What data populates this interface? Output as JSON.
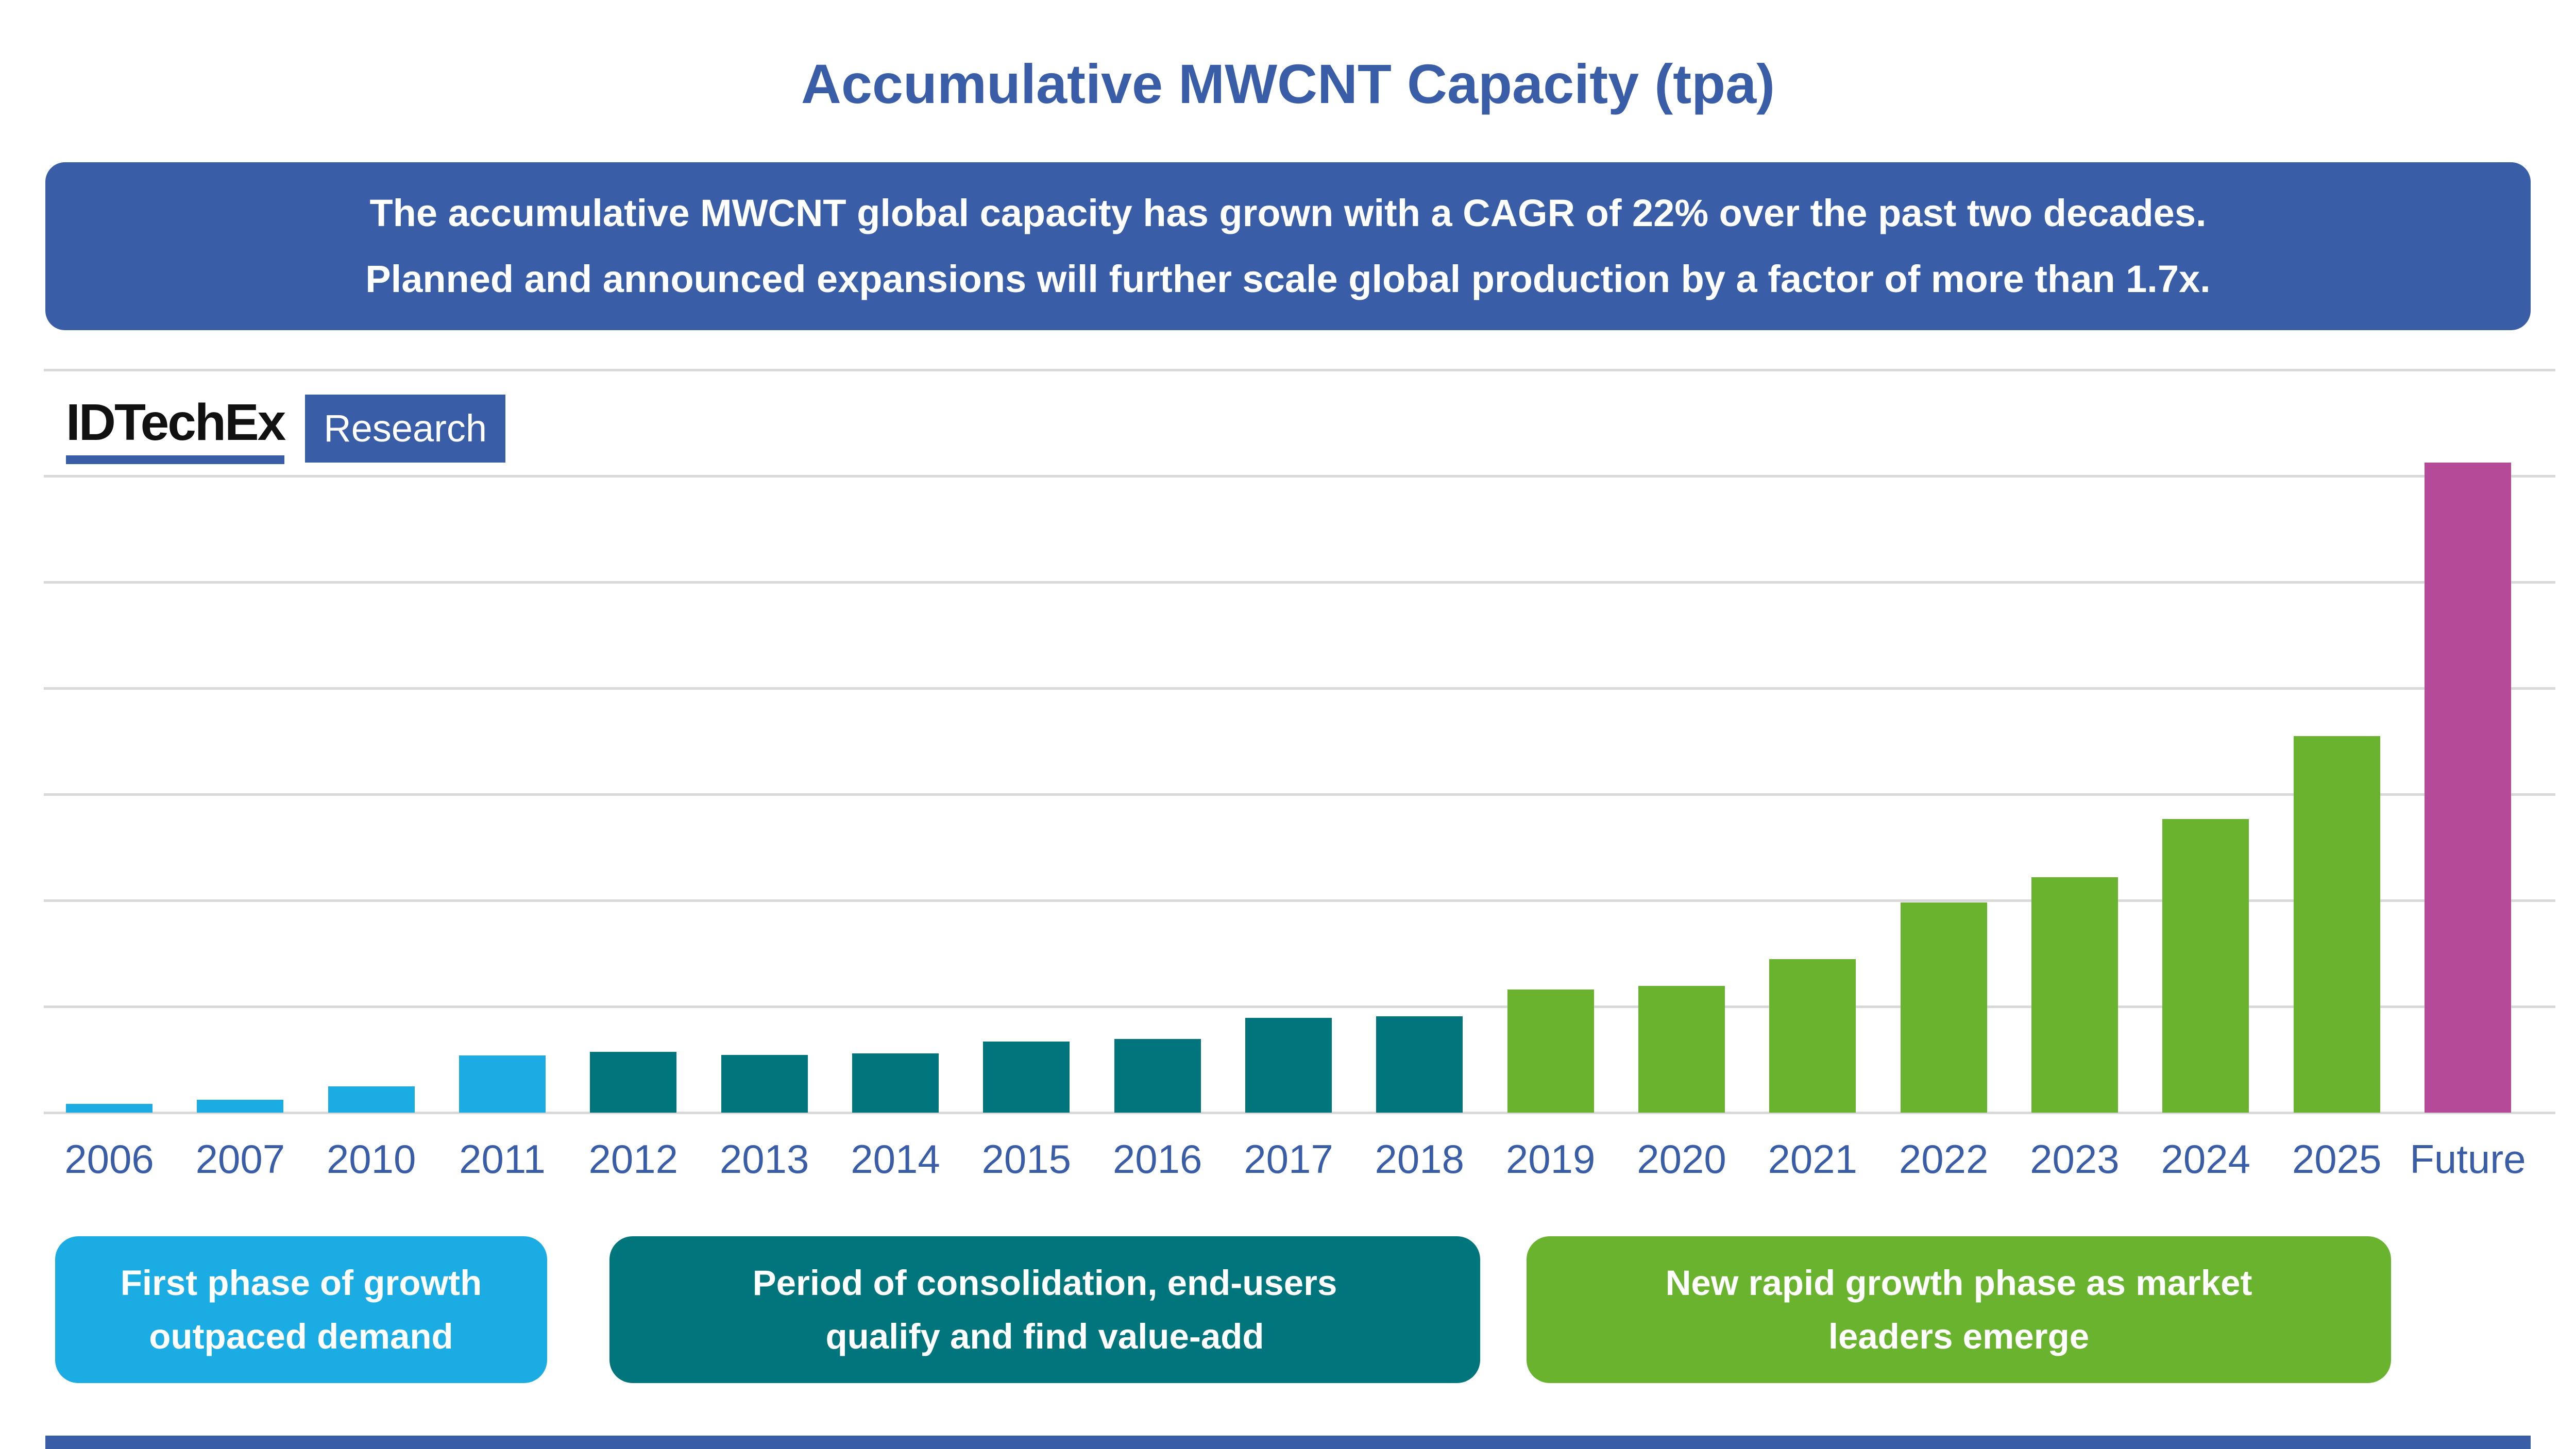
{
  "title": "Accumulative MWCNT Capacity (tpa)",
  "banner": {
    "line1": "The accumulative MWCNT global capacity has grown with a CAGR of 22% over the past two decades.",
    "line2": "Planned and announced expansions will further scale global production by a factor of more than 1.7x.",
    "bg": "#3A5DA8",
    "text_color": "#FFFFFF"
  },
  "logo": {
    "brand": "IDTechEx",
    "suffix": "Research"
  },
  "chart_data": {
    "type": "bar",
    "title": "Accumulative MWCNT Capacity (tpa)",
    "xlabel": "",
    "ylabel": "",
    "unit": "tpa",
    "ylim": [
      0,
      14000
    ],
    "gridline_step": 2000,
    "grid": true,
    "legend": false,
    "categories": [
      "2006",
      "2007",
      "2010",
      "2011",
      "2012",
      "2013",
      "2014",
      "2015",
      "2016",
      "2017",
      "2018",
      "2019",
      "2020",
      "2021",
      "2022",
      "2023",
      "2024",
      "2025",
      "Future"
    ],
    "values": [
      165,
      240,
      500,
      1080,
      1145,
      1090,
      1115,
      1340,
      1390,
      1790,
      1820,
      2320,
      2390,
      2890,
      3960,
      4440,
      5530,
      7100,
      12250
    ],
    "phases": [
      "early",
      "early",
      "early",
      "early",
      "consolidation",
      "consolidation",
      "consolidation",
      "consolidation",
      "consolidation",
      "consolidation",
      "consolidation",
      "growth",
      "growth",
      "growth",
      "growth",
      "growth",
      "growth",
      "growth",
      "future"
    ],
    "phase_colors": {
      "early": "#1AACE3",
      "consolidation": "#00757C",
      "growth": "#6AB32E",
      "future": "#B44A98"
    }
  },
  "annotations": [
    {
      "line1": "First phase of growth",
      "line2": "outpaced demand",
      "color": "#1AACE3"
    },
    {
      "line1": "Period of consolidation, end-users",
      "line2": "qualify and find value-add",
      "color": "#00757C"
    },
    {
      "line1": "New rapid growth phase as market",
      "line2": "leaders emerge",
      "color": "#6AB32E"
    }
  ],
  "colors": {
    "primary_blue": "#3A5DA8",
    "gridline": "#D9D9D9",
    "axis_label": "#3A5DA8",
    "logo_text": "#111111",
    "background": "#FFFFFF"
  }
}
